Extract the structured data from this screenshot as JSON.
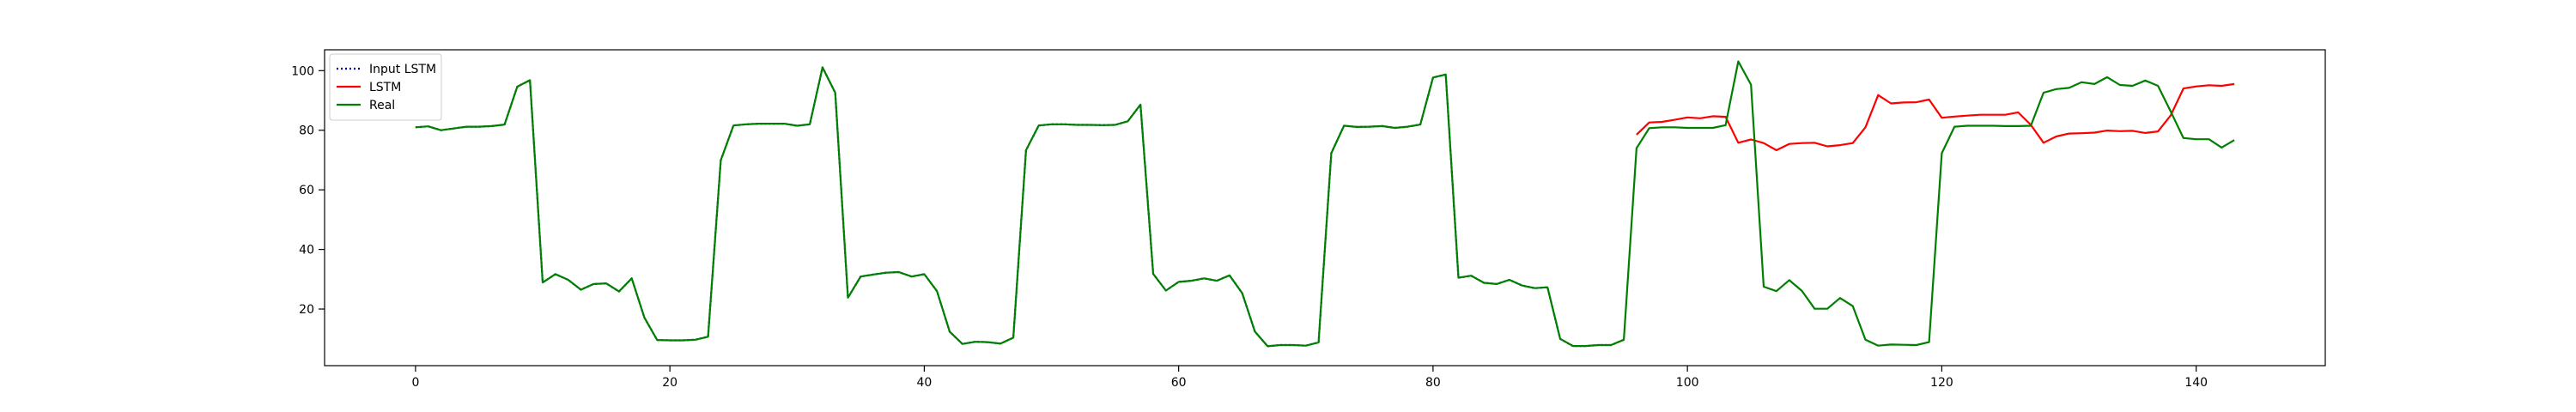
{
  "chart_data": {
    "type": "line",
    "title": "",
    "xlabel": "",
    "ylabel": "",
    "xlim": [
      -7.15,
      150.15
    ],
    "ylim": [
      1.0,
      107.0
    ],
    "xticks": [
      0,
      20,
      40,
      60,
      80,
      100,
      120,
      140
    ],
    "yticks": [
      20,
      40,
      60,
      80,
      100
    ],
    "grid": false,
    "legend_position": "upper-left",
    "legend": [
      "Input LSTM",
      "LSTM",
      "Real"
    ],
    "series": [
      {
        "name": "Input LSTM",
        "color": "#0000aa",
        "style": "dotted",
        "x": [
          0,
          1,
          2,
          3,
          4,
          5,
          6,
          7,
          8,
          9,
          10,
          11,
          12,
          13,
          14,
          15,
          16,
          17,
          18,
          19,
          20,
          21,
          22,
          23,
          24,
          25,
          26,
          27,
          28,
          29,
          30,
          31,
          32,
          33,
          34,
          35,
          36,
          37,
          38,
          39,
          40,
          41,
          42,
          43,
          44,
          45,
          46,
          47,
          48,
          49,
          50,
          51,
          52,
          53,
          54,
          55,
          56,
          57,
          58,
          59,
          60,
          61,
          62,
          63,
          64,
          65,
          66,
          67,
          68,
          69,
          70,
          71,
          72,
          73,
          74,
          75,
          76,
          77,
          78,
          79,
          80,
          81,
          82,
          83,
          84,
          85,
          86,
          87,
          88,
          89,
          90,
          91,
          92,
          93,
          94,
          95
        ],
        "y": [
          81.0,
          81.3,
          80.0,
          80.6,
          81.2,
          81.2,
          81.4,
          81.9,
          94.6,
          96.8,
          28.9,
          31.7,
          29.8,
          26.5,
          28.4,
          28.6,
          25.9,
          30.3,
          17.1,
          9.6,
          9.5,
          9.5,
          9.7,
          10.7,
          69.9,
          81.6,
          82.0,
          82.2,
          82.2,
          82.2,
          81.5,
          82.0,
          101.1,
          92.6,
          23.8,
          30.9,
          31.6,
          32.2,
          32.4,
          30.9,
          31.7,
          26.0,
          12.4,
          8.3,
          9.0,
          8.9,
          8.4,
          10.4,
          73.3,
          81.6,
          82.0,
          82.0,
          81.8,
          81.8,
          81.7,
          81.8,
          83.0,
          88.6,
          31.8,
          26.2,
          29.1,
          29.5,
          30.3,
          29.5,
          31.3,
          25.3,
          12.4,
          7.5,
          7.9,
          7.9,
          7.7,
          8.8,
          72.3,
          81.5,
          81.1,
          81.2,
          81.4,
          80.8,
          81.2,
          81.9,
          97.7,
          98.7,
          30.5,
          31.2,
          28.8,
          28.4,
          29.8,
          27.9,
          27.0,
          27.3,
          10.0,
          7.6,
          7.6,
          7.9,
          7.9,
          9.7
        ]
      },
      {
        "name": "LSTM",
        "color": "#ff0000",
        "style": "solid",
        "x": [
          96,
          97,
          98,
          99,
          100,
          101,
          102,
          103,
          104,
          105,
          106,
          107,
          108,
          109,
          110,
          111,
          112,
          113,
          114,
          115,
          116,
          117,
          118,
          119,
          120,
          121,
          122,
          123,
          124,
          125,
          126,
          127,
          128,
          129,
          130,
          131,
          132,
          133,
          134,
          135,
          136,
          137,
          138,
          139,
          140,
          141,
          142,
          143
        ],
        "y": [
          78.5,
          82.6,
          82.8,
          83.5,
          84.3,
          84.0,
          84.7,
          84.5,
          75.8,
          76.9,
          75.7,
          73.3,
          75.4,
          75.7,
          75.8,
          74.6,
          75.0,
          75.7,
          81.0,
          91.8,
          89.0,
          89.3,
          89.4,
          90.3,
          84.2,
          84.6,
          84.9,
          85.2,
          85.2,
          85.2,
          86.0,
          81.8,
          75.8,
          77.9,
          78.9,
          79.0,
          79.2,
          79.9,
          79.7,
          79.8,
          79.1,
          79.6,
          85.0,
          94.0,
          94.7,
          95.1,
          94.9,
          95.5
        ]
      },
      {
        "name": "Real",
        "color": "#008000",
        "style": "solid",
        "x": [
          0,
          1,
          2,
          3,
          4,
          5,
          6,
          7,
          8,
          9,
          10,
          11,
          12,
          13,
          14,
          15,
          16,
          17,
          18,
          19,
          20,
          21,
          22,
          23,
          24,
          25,
          26,
          27,
          28,
          29,
          30,
          31,
          32,
          33,
          34,
          35,
          36,
          37,
          38,
          39,
          40,
          41,
          42,
          43,
          44,
          45,
          46,
          47,
          48,
          49,
          50,
          51,
          52,
          53,
          54,
          55,
          56,
          57,
          58,
          59,
          60,
          61,
          62,
          63,
          64,
          65,
          66,
          67,
          68,
          69,
          70,
          71,
          72,
          73,
          74,
          75,
          76,
          77,
          78,
          79,
          80,
          81,
          82,
          83,
          84,
          85,
          86,
          87,
          88,
          89,
          90,
          91,
          92,
          93,
          94,
          95,
          96,
          97,
          98,
          99,
          100,
          101,
          102,
          103,
          104,
          105,
          106,
          107,
          108,
          109,
          110,
          111,
          112,
          113,
          114,
          115,
          116,
          117,
          118,
          119,
          120,
          121,
          122,
          123,
          124,
          125,
          126,
          127,
          128,
          129,
          130,
          131,
          132,
          133,
          134,
          135,
          136,
          137,
          138,
          139,
          140,
          141,
          142,
          143
        ],
        "y": [
          81.0,
          81.3,
          80.0,
          80.6,
          81.2,
          81.2,
          81.4,
          81.9,
          94.6,
          96.8,
          28.9,
          31.7,
          29.8,
          26.5,
          28.4,
          28.6,
          25.9,
          30.3,
          17.1,
          9.6,
          9.5,
          9.5,
          9.7,
          10.7,
          69.9,
          81.6,
          82.0,
          82.2,
          82.2,
          82.2,
          81.5,
          82.0,
          101.1,
          92.6,
          23.8,
          30.9,
          31.6,
          32.2,
          32.4,
          30.9,
          31.7,
          26.0,
          12.4,
          8.3,
          9.0,
          8.9,
          8.4,
          10.4,
          73.3,
          81.6,
          82.0,
          82.0,
          81.8,
          81.8,
          81.7,
          81.8,
          83.0,
          88.6,
          31.8,
          26.2,
          29.1,
          29.5,
          30.3,
          29.5,
          31.3,
          25.3,
          12.4,
          7.5,
          7.9,
          7.9,
          7.7,
          8.8,
          72.3,
          81.5,
          81.1,
          81.2,
          81.4,
          80.8,
          81.2,
          81.9,
          97.7,
          98.7,
          30.5,
          31.2,
          28.8,
          28.4,
          29.8,
          27.9,
          27.0,
          27.3,
          10.0,
          7.6,
          7.6,
          7.9,
          7.9,
          9.7,
          74.0,
          80.7,
          81.0,
          81.0,
          80.8,
          80.8,
          80.8,
          81.7,
          103.1,
          95.3,
          27.5,
          26.0,
          29.7,
          26.1,
          20.1,
          20.1,
          23.7,
          21.0,
          9.7,
          7.7,
          8.1,
          8.0,
          7.9,
          8.9,
          72.3,
          81.2,
          81.5,
          81.5,
          81.5,
          81.4,
          81.4,
          81.5,
          92.6,
          93.8,
          94.2,
          96.1,
          95.5,
          97.8,
          95.2,
          94.9,
          96.7,
          94.9,
          86.3,
          77.4,
          77.0,
          77.0,
          74.2,
          76.7
        ]
      }
    ]
  }
}
